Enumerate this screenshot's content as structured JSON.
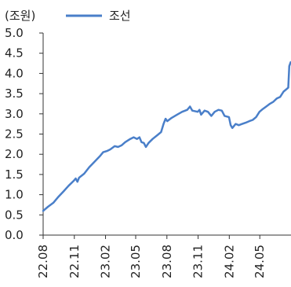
{
  "chart_data": {
    "type": "line",
    "unit_label": "(조원)",
    "ylim": [
      0,
      5
    ],
    "y_ticks": [
      "0.0",
      "0.5",
      "1.0",
      "1.5",
      "2.0",
      "2.5",
      "3.0",
      "3.5",
      "4.0",
      "4.5",
      "5.0"
    ],
    "x_tick_labels": [
      "22.08",
      "22.11",
      "23.02",
      "23.05",
      "23.08",
      "23.11",
      "24.02",
      "24.05"
    ],
    "grid": false,
    "legend_position": "top",
    "series": [
      {
        "name": "조선",
        "color": "#4a7fc9",
        "points": [
          [
            "2022-08-01",
            0.6
          ],
          [
            "2022-08-15",
            0.7
          ],
          [
            "2022-08-31",
            0.8
          ],
          [
            "2022-09-15",
            0.95
          ],
          [
            "2022-09-30",
            1.08
          ],
          [
            "2022-10-15",
            1.22
          ],
          [
            "2022-10-31",
            1.35
          ],
          [
            "2022-11-05",
            1.4
          ],
          [
            "2022-11-10",
            1.32
          ],
          [
            "2022-11-15",
            1.42
          ],
          [
            "2022-11-30",
            1.52
          ],
          [
            "2022-12-15",
            1.68
          ],
          [
            "2022-12-31",
            1.82
          ],
          [
            "2023-01-15",
            1.95
          ],
          [
            "2023-01-25",
            2.05
          ],
          [
            "2023-02-05",
            2.08
          ],
          [
            "2023-02-15",
            2.12
          ],
          [
            "2023-02-28",
            2.2
          ],
          [
            "2023-03-10",
            2.18
          ],
          [
            "2023-03-20",
            2.22
          ],
          [
            "2023-03-31",
            2.3
          ],
          [
            "2023-04-15",
            2.38
          ],
          [
            "2023-04-25",
            2.42
          ],
          [
            "2023-05-05",
            2.38
          ],
          [
            "2023-05-12",
            2.42
          ],
          [
            "2023-05-18",
            2.3
          ],
          [
            "2023-05-25",
            2.28
          ],
          [
            "2023-05-31",
            2.18
          ],
          [
            "2023-06-08",
            2.28
          ],
          [
            "2023-06-20",
            2.38
          ],
          [
            "2023-07-05",
            2.48
          ],
          [
            "2023-07-15",
            2.55
          ],
          [
            "2023-07-22",
            2.75
          ],
          [
            "2023-07-28",
            2.88
          ],
          [
            "2023-08-02",
            2.82
          ],
          [
            "2023-08-15",
            2.9
          ],
          [
            "2023-08-31",
            2.98
          ],
          [
            "2023-09-15",
            3.05
          ],
          [
            "2023-09-30",
            3.1
          ],
          [
            "2023-10-08",
            3.18
          ],
          [
            "2023-10-15",
            3.08
          ],
          [
            "2023-10-31",
            3.05
          ],
          [
            "2023-11-05",
            3.1
          ],
          [
            "2023-11-10",
            2.98
          ],
          [
            "2023-11-20",
            3.08
          ],
          [
            "2023-11-30",
            3.05
          ],
          [
            "2023-12-10",
            2.95
          ],
          [
            "2023-12-20",
            3.05
          ],
          [
            "2023-12-31",
            3.1
          ],
          [
            "2024-01-10",
            3.08
          ],
          [
            "2024-01-18",
            2.95
          ],
          [
            "2024-01-31",
            2.92
          ],
          [
            "2024-02-05",
            2.72
          ],
          [
            "2024-02-10",
            2.65
          ],
          [
            "2024-02-20",
            2.75
          ],
          [
            "2024-02-29",
            2.72
          ],
          [
            "2024-03-10",
            2.75
          ],
          [
            "2024-03-20",
            2.78
          ],
          [
            "2024-03-31",
            2.82
          ],
          [
            "2024-04-10",
            2.85
          ],
          [
            "2024-04-20",
            2.92
          ],
          [
            "2024-04-30",
            3.05
          ],
          [
            "2024-05-10",
            3.12
          ],
          [
            "2024-05-20",
            3.18
          ],
          [
            "2024-05-31",
            3.25
          ],
          [
            "2024-06-10",
            3.3
          ],
          [
            "2024-06-20",
            3.38
          ],
          [
            "2024-06-30",
            3.42
          ],
          [
            "2024-07-10",
            3.55
          ],
          [
            "2024-07-20",
            3.62
          ],
          [
            "2024-07-24",
            3.65
          ],
          [
            "2024-07-27",
            4.18
          ],
          [
            "2024-07-31",
            4.28
          ]
        ]
      }
    ]
  }
}
